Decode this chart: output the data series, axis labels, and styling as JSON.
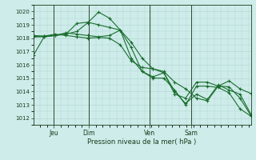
{
  "title": "Pression niveau de la mer( hPa )",
  "bg_color": "#ceecea",
  "grid_color": "#aed4d0",
  "line_color": "#1a6e2e",
  "vline_color": "#2a4a2a",
  "ylim": [
    1011.5,
    1020.5
  ],
  "yticks": [
    1012,
    1013,
    1014,
    1015,
    1016,
    1017,
    1018,
    1019,
    1020
  ],
  "day_positions": [
    0.095,
    0.255,
    0.535,
    0.725
  ],
  "day_labels": [
    "Jeu",
    "Dim",
    "Ven",
    "Sam"
  ],
  "series": [
    [
      1016.7,
      1018.1,
      1018.2,
      1018.3,
      1019.1,
      1019.2,
      1019.0,
      1018.8,
      1018.6,
      1017.3,
      1015.5,
      1015.0,
      1015.0,
      1014.1,
      1013.0,
      1014.4,
      1014.4,
      1014.3,
      1013.9,
      1012.7,
      1012.15
    ],
    [
      1018.1,
      1018.1,
      1018.2,
      1018.3,
      1018.5,
      1019.15,
      1019.95,
      1019.5,
      1018.6,
      1017.7,
      1016.5,
      1015.7,
      1015.5,
      1014.7,
      1014.2,
      1013.5,
      1013.3,
      1014.4,
      1014.8,
      1014.2,
      1013.85
    ],
    [
      1018.1,
      1018.15,
      1018.2,
      1018.4,
      1018.3,
      1018.2,
      1018.1,
      1018.2,
      1018.6,
      1016.5,
      1015.5,
      1015.1,
      1015.4,
      1014.0,
      1013.1,
      1013.8,
      1013.4,
      1014.5,
      1014.1,
      1013.8,
      1012.3
    ],
    [
      1018.2,
      1018.15,
      1018.3,
      1018.2,
      1018.1,
      1018.0,
      1018.05,
      1018.0,
      1017.5,
      1016.3,
      1015.8,
      1015.7,
      1015.4,
      1013.8,
      1013.5,
      1014.7,
      1014.7,
      1014.4,
      1014.35,
      1013.5,
      1012.2
    ]
  ]
}
